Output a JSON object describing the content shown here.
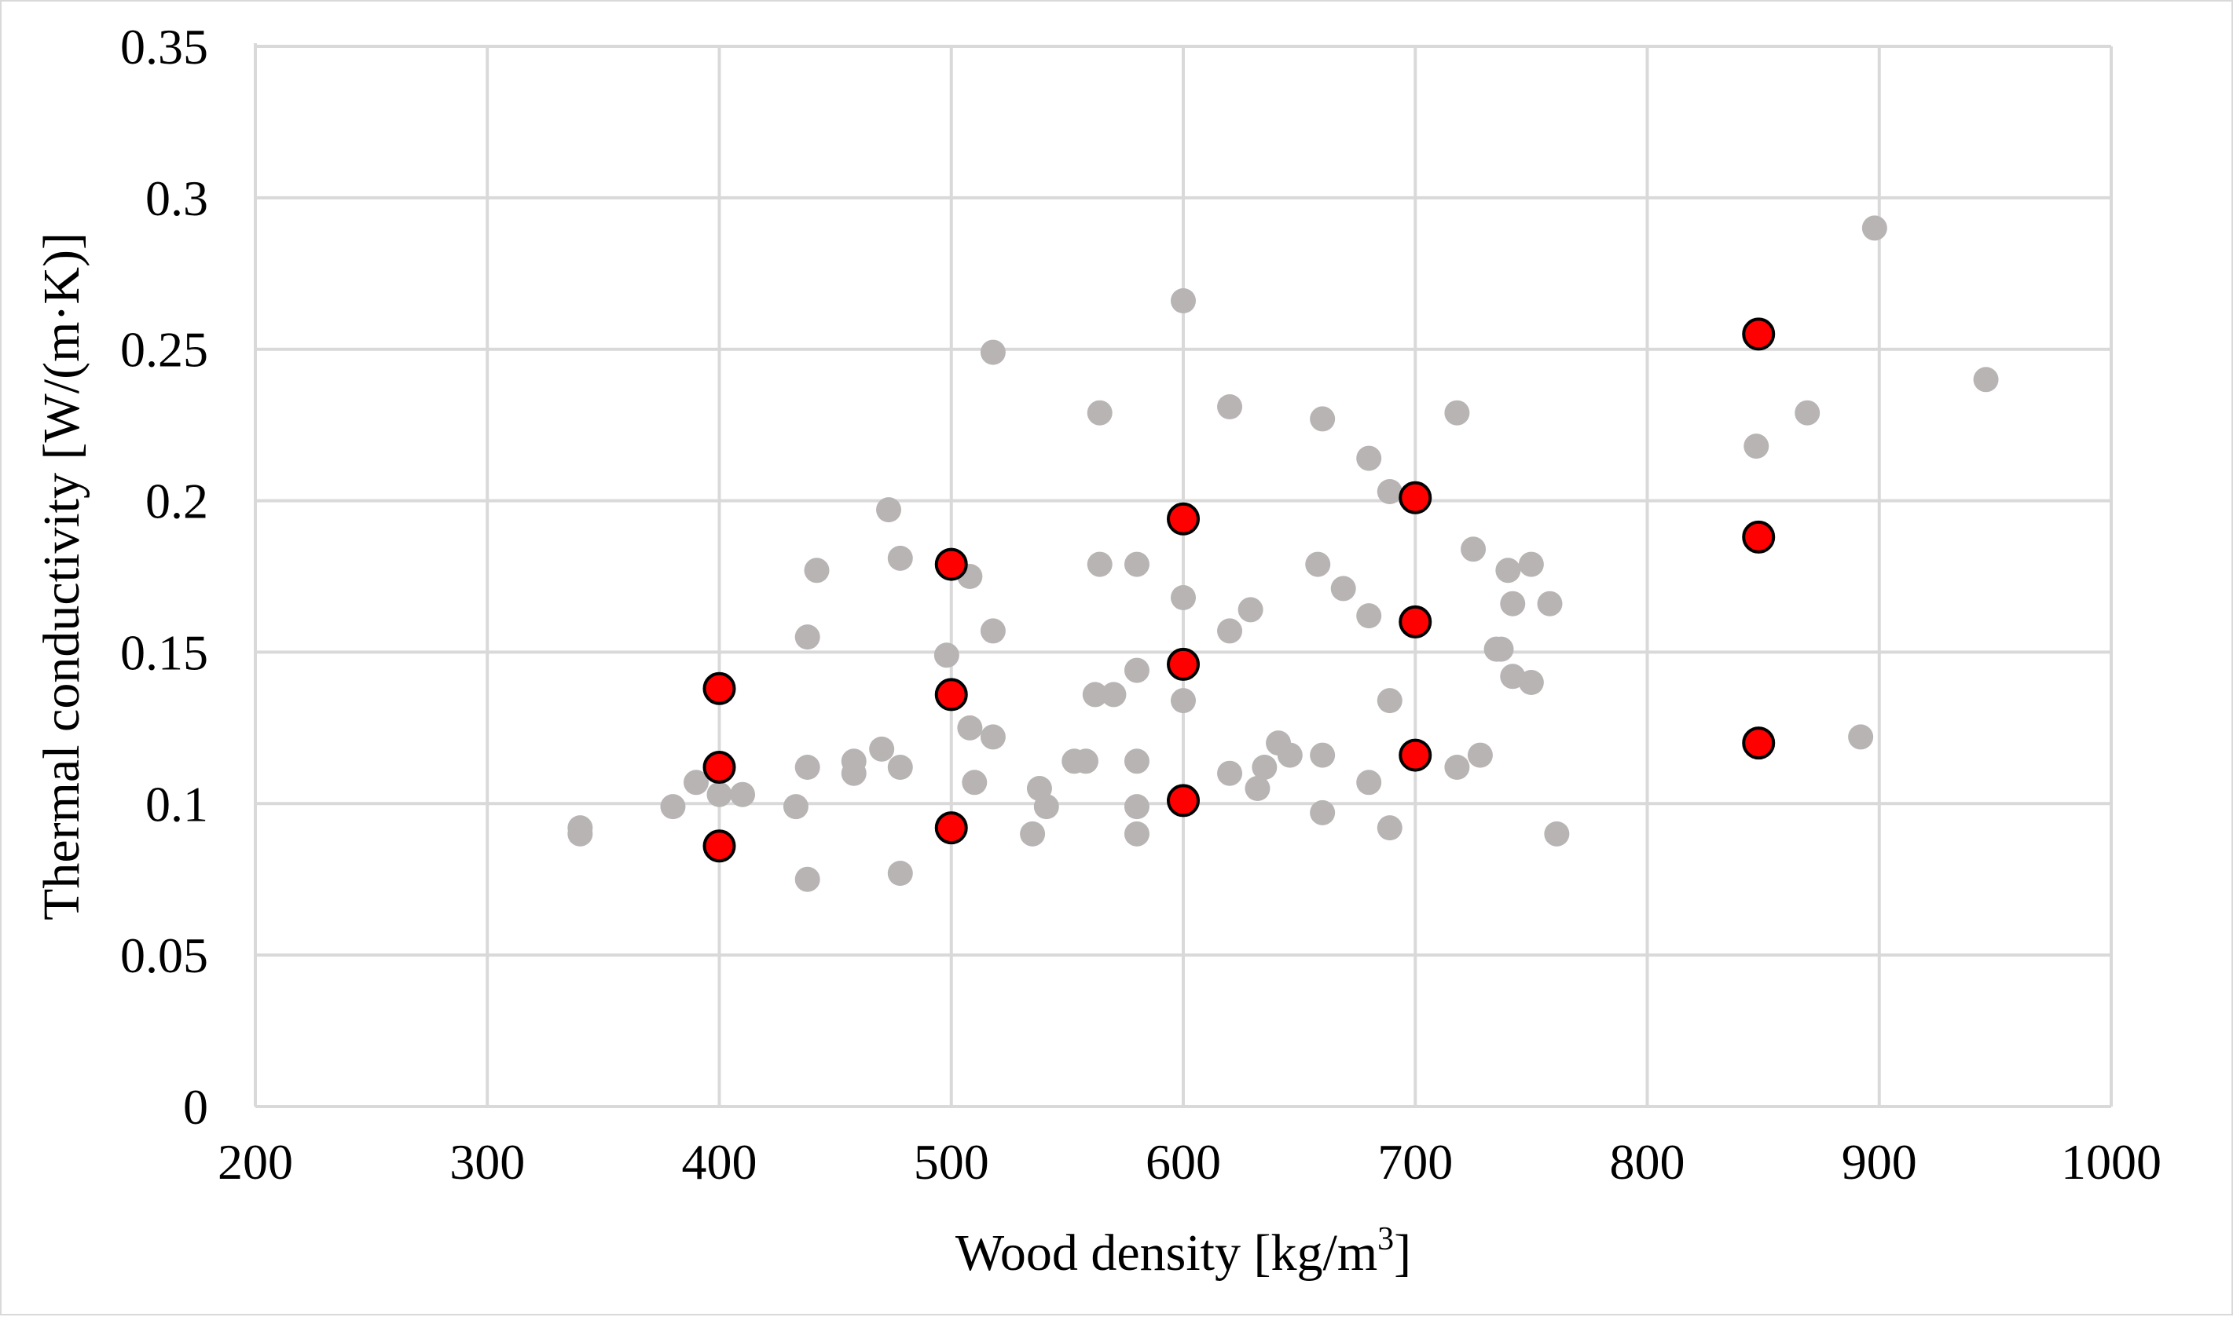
{
  "chart_data": {
    "type": "scatter",
    "title": "",
    "xlabel": "Wood density [kg/m",
    "xlabel_sup": "3",
    "xlabel_suffix": "]",
    "ylabel": "Thermal conductivity [W/(m·K)]",
    "xlim": [
      200,
      1000
    ],
    "ylim": [
      0,
      0.35
    ],
    "x_ticks": [
      200,
      300,
      400,
      500,
      600,
      700,
      800,
      900,
      1000
    ],
    "x_tick_labels": [
      "200",
      "300",
      "400",
      "500",
      "600",
      "700",
      "800",
      "900",
      "1000"
    ],
    "y_ticks": [
      0,
      0.05,
      0.1,
      0.15,
      0.2,
      0.25,
      0.3,
      0.35
    ],
    "y_tick_labels": [
      "0",
      "0.05",
      "0.1",
      "0.15",
      "0.2",
      "0.25",
      "0.3",
      "0.35"
    ],
    "grid": true,
    "legend": "none",
    "series": [
      {
        "color": "#b8b4b4",
        "edge": "none",
        "points": [
          [
            340,
            0.092
          ],
          [
            340,
            0.09
          ],
          [
            380,
            0.099
          ],
          [
            390,
            0.107
          ],
          [
            400,
            0.103
          ],
          [
            410,
            0.103
          ],
          [
            433,
            0.099
          ],
          [
            438,
            0.075
          ],
          [
            438,
            0.112
          ],
          [
            438,
            0.155
          ],
          [
            442,
            0.177
          ],
          [
            458,
            0.114
          ],
          [
            458,
            0.11
          ],
          [
            470,
            0.118
          ],
          [
            473,
            0.197
          ],
          [
            478,
            0.112
          ],
          [
            478,
            0.181
          ],
          [
            478,
            0.077
          ],
          [
            498,
            0.149
          ],
          [
            508,
            0.125
          ],
          [
            508,
            0.175
          ],
          [
            510,
            0.107
          ],
          [
            518,
            0.249
          ],
          [
            518,
            0.157
          ],
          [
            518,
            0.122
          ],
          [
            535,
            0.09
          ],
          [
            538,
            0.105
          ],
          [
            541,
            0.099
          ],
          [
            553,
            0.114
          ],
          [
            558,
            0.114
          ],
          [
            562,
            0.136
          ],
          [
            564,
            0.179
          ],
          [
            564,
            0.229
          ],
          [
            570,
            0.136
          ],
          [
            580,
            0.144
          ],
          [
            580,
            0.179
          ],
          [
            580,
            0.114
          ],
          [
            580,
            0.099
          ],
          [
            580,
            0.09
          ],
          [
            600,
            0.266
          ],
          [
            600,
            0.168
          ],
          [
            600,
            0.134
          ],
          [
            620,
            0.231
          ],
          [
            620,
            0.157
          ],
          [
            620,
            0.11
          ],
          [
            629,
            0.164
          ],
          [
            632,
            0.105
          ],
          [
            635,
            0.112
          ],
          [
            641,
            0.12
          ],
          [
            646,
            0.116
          ],
          [
            658,
            0.179
          ],
          [
            660,
            0.227
          ],
          [
            660,
            0.116
          ],
          [
            660,
            0.097
          ],
          [
            669,
            0.171
          ],
          [
            680,
            0.214
          ],
          [
            680,
            0.162
          ],
          [
            680,
            0.107
          ],
          [
            689,
            0.203
          ],
          [
            689,
            0.134
          ],
          [
            689,
            0.092
          ],
          [
            718,
            0.229
          ],
          [
            718,
            0.112
          ],
          [
            725,
            0.184
          ],
          [
            728,
            0.116
          ],
          [
            735,
            0.151
          ],
          [
            737,
            0.151
          ],
          [
            740,
            0.177
          ],
          [
            742,
            0.166
          ],
          [
            742,
            0.142
          ],
          [
            750,
            0.179
          ],
          [
            750,
            0.14
          ],
          [
            758,
            0.166
          ],
          [
            761,
            0.09
          ],
          [
            847,
            0.218
          ],
          [
            869,
            0.229
          ],
          [
            892,
            0.122
          ],
          [
            898,
            0.29
          ],
          [
            946,
            0.24
          ]
        ]
      },
      {
        "color": "#ff0000",
        "edge": "#000000",
        "points": [
          [
            400,
            0.138
          ],
          [
            400,
            0.112
          ],
          [
            400,
            0.086
          ],
          [
            500,
            0.179
          ],
          [
            500,
            0.136
          ],
          [
            500,
            0.092
          ],
          [
            600,
            0.194
          ],
          [
            600,
            0.146
          ],
          [
            600,
            0.101
          ],
          [
            700,
            0.201
          ],
          [
            700,
            0.16
          ],
          [
            700,
            0.116
          ],
          [
            848,
            0.255
          ],
          [
            848,
            0.188
          ],
          [
            848,
            0.12
          ]
        ]
      }
    ]
  }
}
